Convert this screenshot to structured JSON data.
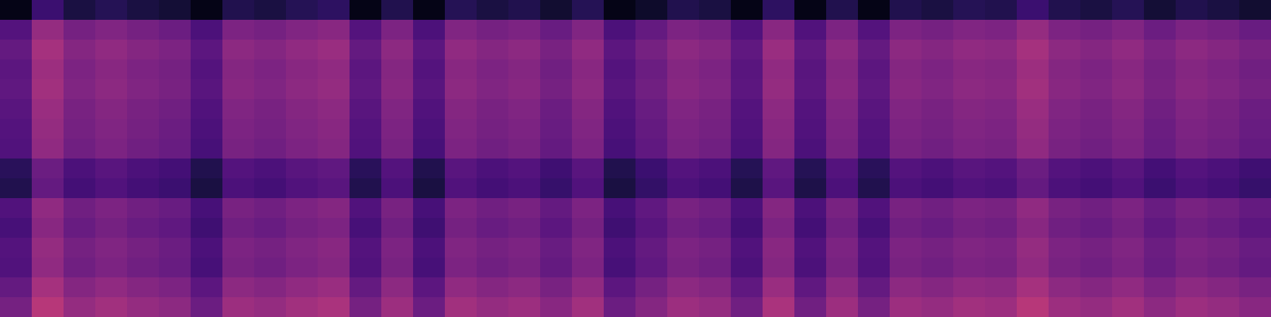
{
  "chart_data": {
    "type": "heatmap",
    "tick_labels": false,
    "color": "magma",
    "zlim": [
      0,
      100
    ],
    "z": [
      [
        4,
        20,
        12,
        15,
        12,
        10,
        4,
        14,
        12,
        15,
        17,
        4,
        14,
        4,
        15,
        12,
        14,
        9,
        15,
        4,
        8,
        14,
        12,
        4,
        17,
        4,
        14,
        4,
        14,
        12,
        15,
        14,
        20,
        14,
        12,
        15,
        10,
        14,
        12,
        9
      ],
      [
        26,
        42,
        34,
        37,
        34,
        32,
        24,
        36,
        34,
        37,
        39,
        26,
        36,
        24,
        37,
        34,
        36,
        31,
        37,
        24,
        30,
        36,
        34,
        25,
        39,
        25,
        36,
        26,
        36,
        34,
        37,
        36,
        42,
        36,
        34,
        37,
        32,
        36,
        34,
        31
      ],
      [
        30,
        46,
        38,
        41,
        38,
        36,
        28,
        40,
        38,
        41,
        43,
        30,
        40,
        28,
        41,
        38,
        40,
        35,
        41,
        28,
        34,
        40,
        38,
        29,
        43,
        29,
        40,
        30,
        40,
        38,
        41,
        40,
        46,
        40,
        38,
        41,
        36,
        40,
        38,
        35
      ],
      [
        28,
        44,
        36,
        39,
        36,
        34,
        26,
        38,
        36,
        39,
        41,
        28,
        38,
        26,
        39,
        36,
        38,
        33,
        39,
        26,
        32,
        38,
        36,
        27,
        41,
        27,
        38,
        28,
        38,
        36,
        39,
        38,
        44,
        38,
        36,
        39,
        34,
        38,
        36,
        33
      ],
      [
        29,
        45,
        37,
        40,
        37,
        35,
        27,
        39,
        37,
        40,
        42,
        29,
        39,
        27,
        40,
        37,
        39,
        34,
        40,
        27,
        33,
        39,
        37,
        28,
        42,
        28,
        39,
        29,
        39,
        37,
        40,
        39,
        45,
        39,
        37,
        40,
        35,
        39,
        37,
        34
      ],
      [
        27,
        43,
        35,
        38,
        35,
        33,
        25,
        37,
        35,
        38,
        40,
        27,
        37,
        25,
        38,
        35,
        37,
        32,
        38,
        25,
        31,
        37,
        35,
        26,
        40,
        26,
        37,
        27,
        37,
        35,
        38,
        37,
        43,
        37,
        35,
        38,
        33,
        37,
        35,
        32
      ],
      [
        26,
        42,
        34,
        37,
        34,
        32,
        24,
        36,
        34,
        37,
        39,
        26,
        36,
        24,
        37,
        34,
        36,
        31,
        37,
        24,
        30,
        36,
        34,
        25,
        39,
        25,
        36,
        26,
        36,
        34,
        37,
        36,
        42,
        36,
        34,
        37,
        32,
        36,
        34,
        31
      ],
      [
        25,
        41,
        33,
        36,
        33,
        31,
        23,
        35,
        33,
        36,
        38,
        25,
        35,
        23,
        36,
        33,
        35,
        30,
        36,
        23,
        29,
        35,
        33,
        24,
        38,
        24,
        35,
        25,
        35,
        33,
        36,
        35,
        41,
        35,
        33,
        36,
        31,
        35,
        33,
        30
      ],
      [
        16,
        32,
        24,
        27,
        24,
        22,
        14,
        26,
        24,
        27,
        29,
        16,
        26,
        14,
        27,
        24,
        26,
        21,
        27,
        14,
        20,
        26,
        24,
        15,
        29,
        15,
        26,
        16,
        26,
        24,
        27,
        26,
        32,
        26,
        24,
        27,
        22,
        26,
        24,
        21
      ],
      [
        14,
        30,
        22,
        25,
        22,
        20,
        12,
        24,
        22,
        25,
        27,
        14,
        24,
        12,
        25,
        22,
        24,
        19,
        25,
        12,
        18,
        24,
        22,
        13,
        27,
        13,
        24,
        14,
        24,
        22,
        25,
        24,
        30,
        24,
        22,
        25,
        20,
        24,
        22,
        19
      ],
      [
        25,
        41,
        33,
        36,
        33,
        31,
        23,
        35,
        33,
        36,
        38,
        25,
        35,
        23,
        36,
        33,
        35,
        30,
        36,
        23,
        29,
        35,
        33,
        24,
        38,
        24,
        35,
        25,
        35,
        33,
        36,
        35,
        41,
        35,
        33,
        36,
        31,
        35,
        33,
        30
      ],
      [
        23,
        39,
        31,
        34,
        31,
        29,
        21,
        33,
        31,
        34,
        36,
        23,
        33,
        21,
        34,
        31,
        33,
        28,
        34,
        21,
        27,
        33,
        31,
        22,
        36,
        22,
        33,
        23,
        33,
        31,
        34,
        33,
        39,
        33,
        31,
        34,
        29,
        33,
        31,
        28
      ],
      [
        26,
        42,
        34,
        37,
        34,
        32,
        24,
        36,
        34,
        37,
        39,
        26,
        36,
        24,
        37,
        34,
        36,
        31,
        37,
        24,
        30,
        36,
        34,
        25,
        39,
        25,
        36,
        26,
        36,
        34,
        37,
        36,
        42,
        36,
        34,
        37,
        32,
        36,
        34,
        31
      ],
      [
        25,
        41,
        33,
        36,
        33,
        31,
        23,
        35,
        33,
        36,
        38,
        25,
        35,
        23,
        36,
        33,
        35,
        30,
        36,
        23,
        29,
        35,
        33,
        24,
        38,
        24,
        35,
        25,
        35,
        33,
        36,
        35,
        41,
        35,
        33,
        36,
        31,
        35,
        33,
        30
      ],
      [
        30,
        46,
        38,
        41,
        38,
        36,
        28,
        40,
        38,
        41,
        43,
        30,
        40,
        28,
        41,
        38,
        40,
        35,
        41,
        28,
        34,
        40,
        38,
        29,
        43,
        29,
        40,
        30,
        40,
        38,
        41,
        40,
        46,
        40,
        38,
        41,
        36,
        40,
        38,
        35
      ],
      [
        34,
        50,
        42,
        45,
        42,
        40,
        32,
        44,
        42,
        45,
        47,
        34,
        44,
        32,
        45,
        42,
        44,
        39,
        45,
        32,
        38,
        44,
        42,
        33,
        47,
        33,
        44,
        34,
        44,
        42,
        45,
        44,
        50,
        44,
        42,
        45,
        40,
        44,
        42,
        39
      ]
    ]
  }
}
